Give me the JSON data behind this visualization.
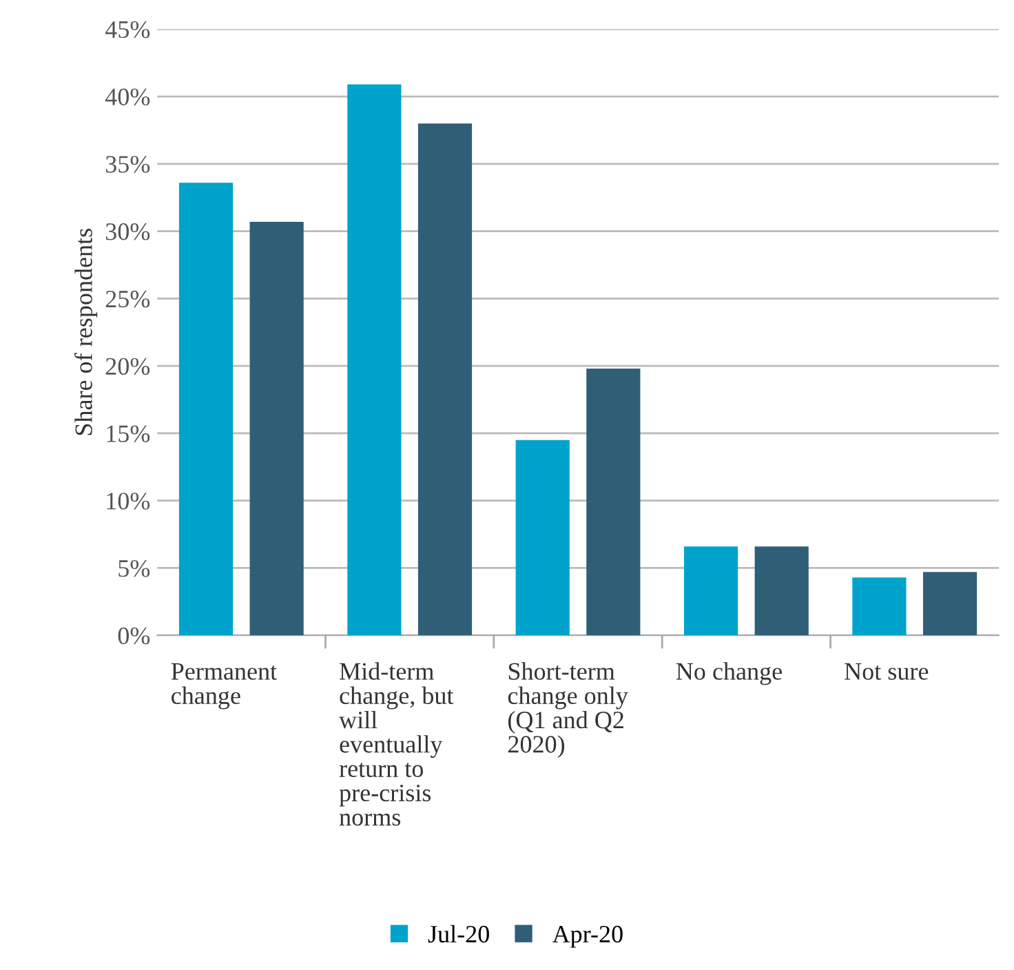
{
  "chart_data": {
    "type": "bar",
    "ylabel": "Share of respondents",
    "categories": [
      "Permanent change",
      "Mid-term change, but will eventually return to pre-crisis norms",
      "Short-term change only (Q1 and Q2 2020)",
      "No change",
      "Not sure"
    ],
    "series": [
      {
        "name": "Jul-20",
        "color": "#00a3cc",
        "values": [
          33.6,
          40.9,
          14.5,
          6.6,
          4.3
        ]
      },
      {
        "name": "Apr-20",
        "color": "#2f5f77",
        "values": [
          30.7,
          38.0,
          19.8,
          6.6,
          4.7
        ]
      }
    ],
    "ylim": [
      0,
      45
    ],
    "yticks": [
      {
        "value": 0,
        "label": "0%"
      },
      {
        "value": 5,
        "label": "5%"
      },
      {
        "value": 10,
        "label": "10%"
      },
      {
        "value": 15,
        "label": "15%"
      },
      {
        "value": 20,
        "label": "20%"
      },
      {
        "value": 25,
        "label": "25%"
      },
      {
        "value": 30,
        "label": "30%"
      },
      {
        "value": 35,
        "label": "35%"
      },
      {
        "value": 40,
        "label": "40%"
      },
      {
        "value": 45,
        "label": "45%"
      }
    ],
    "grid": "y",
    "legend": "bottom"
  }
}
